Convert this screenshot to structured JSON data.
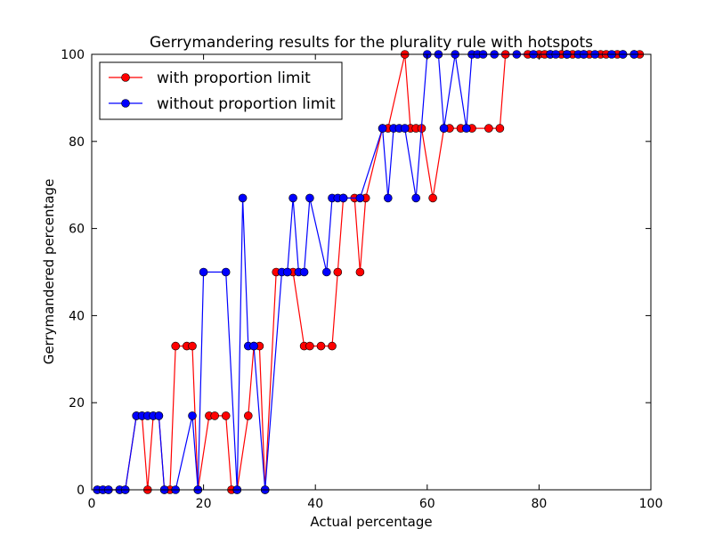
{
  "chart_data": {
    "type": "line",
    "title": "Gerrymandering results for the plurality rule with hotspots",
    "xlabel": "Actual percentage",
    "ylabel": "Gerrymandered percentage",
    "xlim": [
      0,
      100
    ],
    "ylim": [
      0,
      100
    ],
    "xticks": [
      0,
      20,
      40,
      60,
      80,
      100
    ],
    "yticks": [
      0,
      20,
      40,
      60,
      80,
      100
    ],
    "grid": false,
    "legend_position": "top-left",
    "series": [
      {
        "name": "with proportion limit",
        "color": "#ff0000",
        "x": [
          1,
          2,
          3,
          5,
          6,
          8,
          9,
          10,
          11,
          12,
          13,
          14,
          15,
          17,
          18,
          19,
          21,
          22,
          24,
          25,
          26,
          28,
          29,
          30,
          31,
          33,
          35,
          36,
          38,
          39,
          41,
          43,
          44,
          45,
          47,
          48,
          49,
          52,
          53,
          56,
          57,
          58,
          59,
          61,
          63,
          64,
          66,
          68,
          71,
          73,
          74,
          78,
          80,
          81,
          82,
          84,
          85,
          86,
          88,
          89,
          91,
          92,
          94,
          95,
          97,
          98
        ],
        "y": [
          0,
          0,
          0,
          0,
          0,
          17,
          17,
          0,
          17,
          17,
          0,
          0,
          33,
          33,
          33,
          0,
          17,
          17,
          17,
          0,
          0,
          17,
          33,
          33,
          0,
          50,
          50,
          50,
          33,
          33,
          33,
          33,
          50,
          67,
          67,
          50,
          67,
          83,
          83,
          100,
          83,
          83,
          83,
          67,
          83,
          83,
          83,
          83,
          83,
          83,
          100,
          100,
          100,
          100,
          100,
          100,
          100,
          100,
          100,
          100,
          100,
          100,
          100,
          100,
          100,
          100
        ]
      },
      {
        "name": "without proportion limit",
        "color": "#0000ff",
        "x": [
          1,
          2,
          3,
          5,
          6,
          8,
          9,
          10,
          11,
          12,
          13,
          15,
          18,
          19,
          20,
          24,
          26,
          27,
          28,
          29,
          31,
          34,
          35,
          36,
          37,
          38,
          39,
          42,
          43,
          44,
          45,
          48,
          52,
          53,
          54,
          55,
          56,
          58,
          60,
          62,
          63,
          65,
          67,
          68,
          69,
          70,
          72,
          76,
          79,
          82,
          83,
          85,
          87,
          88,
          90,
          93,
          95,
          97
        ],
        "y": [
          0,
          0,
          0,
          0,
          0,
          17,
          17,
          17,
          17,
          17,
          0,
          0,
          17,
          0,
          50,
          50,
          0,
          67,
          33,
          33,
          0,
          50,
          50,
          67,
          50,
          50,
          67,
          50,
          67,
          67,
          67,
          67,
          83,
          67,
          83,
          83,
          83,
          67,
          100,
          100,
          83,
          100,
          83,
          100,
          100,
          100,
          100,
          100,
          100,
          100,
          100,
          100,
          100,
          100,
          100,
          100,
          100,
          100
        ]
      }
    ]
  }
}
